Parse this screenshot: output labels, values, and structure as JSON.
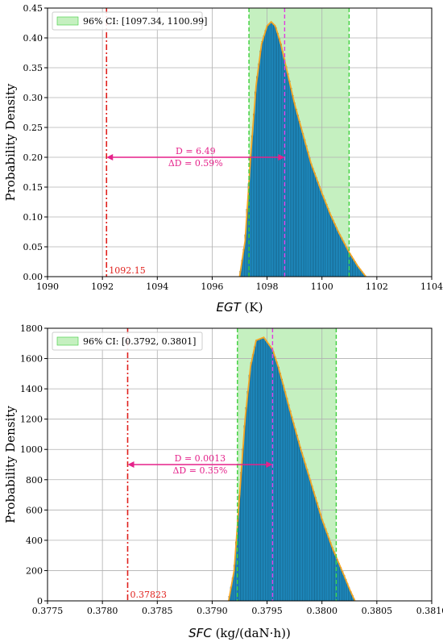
{
  "chart_data": [
    {
      "type": "bar",
      "subtype": "histogram",
      "xlabel_var": "EGT",
      "xlabel_unit": " (K)",
      "ylabel": "Probability Density",
      "xlim": [
        1090,
        1104
      ],
      "ylim": [
        0,
        0.45
      ],
      "x_ticks": [
        1090,
        1092,
        1094,
        1096,
        1098,
        1100,
        1102,
        1104
      ],
      "x_tick_labels": [
        "1090",
        "1092",
        "1094",
        "1096",
        "1098",
        "1100",
        "1102",
        "1104"
      ],
      "y_ticks": [
        0,
        0.05,
        0.1,
        0.15,
        0.2,
        0.25,
        0.3,
        0.35,
        0.4,
        0.45
      ],
      "y_tick_labels": [
        "0.00",
        "0.05",
        "0.10",
        "0.15",
        "0.20",
        "0.25",
        "0.30",
        "0.35",
        "0.40",
        "0.45"
      ],
      "grid": true,
      "legend_position": "top-left",
      "ci": {
        "low": 1097.34,
        "high": 1100.99,
        "label": "96% CI: [1097.34, 1100.99]"
      },
      "reference": {
        "value": 1092.15,
        "label": "1092.15"
      },
      "mean": 1098.64,
      "peak_x": 1098.15,
      "density_curve": {
        "x": [
          1097.0,
          1097.2,
          1097.4,
          1097.6,
          1097.8,
          1098.0,
          1098.15,
          1098.3,
          1098.5,
          1098.7,
          1099.0,
          1099.3,
          1099.6,
          1100.0,
          1100.3,
          1100.6,
          1101.0,
          1101.3,
          1101.6
        ],
        "y": [
          0.0,
          0.06,
          0.2,
          0.32,
          0.39,
          0.42,
          0.427,
          0.42,
          0.39,
          0.35,
          0.29,
          0.24,
          0.19,
          0.14,
          0.105,
          0.075,
          0.04,
          0.018,
          0.0
        ]
      },
      "annotation": {
        "d_line": "D = 6.49",
        "dd_line": "ΔD = 0.59%",
        "y": 0.2
      },
      "colors": {
        "bar": "#1f8fc6",
        "curve": "#f5a623",
        "ci_fill": "#c5f0c0",
        "ci_edge": "#3ccf3c",
        "mean": "#e03ce0",
        "reference": "#e0201c",
        "annotation": "#e5218a"
      }
    },
    {
      "type": "bar",
      "subtype": "histogram",
      "xlabel_var": "SFC",
      "xlabel_unit": " (kg/(daN·h))",
      "ylabel": "Probability Density",
      "xlim": [
        0.3775,
        0.381
      ],
      "ylim": [
        0,
        1800
      ],
      "x_ticks": [
        0.3775,
        0.378,
        0.3785,
        0.379,
        0.3795,
        0.38,
        0.3805,
        0.381
      ],
      "x_tick_labels": [
        "0.3775",
        "0.3780",
        "0.3785",
        "0.3790",
        "0.3795",
        "0.3800",
        "0.3805",
        "0.3810"
      ],
      "y_ticks": [
        0,
        200,
        400,
        600,
        800,
        1000,
        1200,
        1400,
        1600,
        1800
      ],
      "y_tick_labels": [
        "0",
        "200",
        "400",
        "600",
        "800",
        "1000",
        "1200",
        "1400",
        "1600",
        "1800"
      ],
      "grid": true,
      "legend_position": "top-left",
      "ci": {
        "low": 0.37923,
        "high": 0.38013,
        "label": "96% CI: [0.3792, 0.3801]"
      },
      "reference": {
        "value": 0.37823,
        "label": "0.37823"
      },
      "mean": 0.37955,
      "peak_x": 0.37947,
      "density_curve": {
        "x": [
          0.37915,
          0.3792,
          0.37925,
          0.3793,
          0.37935,
          0.3794,
          0.37947,
          0.37955,
          0.3796,
          0.37965,
          0.3797,
          0.3798,
          0.3799,
          0.38,
          0.3801,
          0.3802,
          0.38025,
          0.3803
        ],
        "y": [
          0.0,
          200,
          700,
          1200,
          1550,
          1720,
          1740,
          1660,
          1550,
          1420,
          1280,
          1020,
          780,
          540,
          340,
          170,
          80,
          0.0
        ]
      },
      "annotation": {
        "d_line": "D = 0.0013",
        "dd_line": "ΔD = 0.35%",
        "y": 900
      },
      "colors": {
        "bar": "#1f8fc6",
        "curve": "#f5a623",
        "ci_fill": "#c5f0c0",
        "ci_edge": "#3ccf3c",
        "mean": "#e03ce0",
        "reference": "#e0201c",
        "annotation": "#e5218a"
      }
    }
  ]
}
